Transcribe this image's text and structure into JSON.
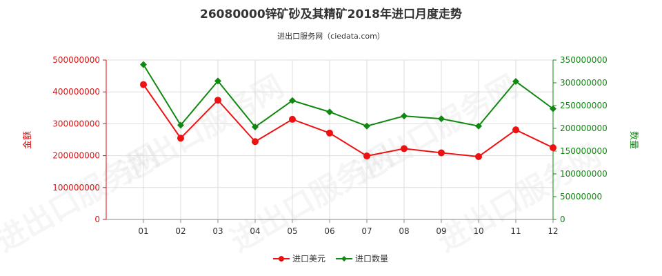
{
  "chart_data": {
    "type": "line",
    "title": "26080000锌矿砂及其精矿2018年进口月度走势",
    "subtitle": "进出口服务网（ciedata.com）",
    "categories": [
      "01",
      "02",
      "03",
      "04",
      "05",
      "06",
      "07",
      "08",
      "09",
      "10",
      "11",
      "12"
    ],
    "y_left": {
      "label": "金额",
      "ylim": [
        0,
        500000000
      ],
      "ticks": [
        "0",
        "100000000",
        "200000000",
        "300000000",
        "400000000",
        "500000000"
      ]
    },
    "y_right": {
      "label": "数量",
      "ylim": [
        0,
        350000000
      ],
      "ticks": [
        "0",
        "50000000",
        "100000000",
        "150000000",
        "200000000",
        "250000000",
        "300000000",
        "350000000"
      ]
    },
    "series": [
      {
        "name": "进口美元",
        "axis": "left",
        "color": "#ee1111",
        "values": [
          423000000,
          255000000,
          374000000,
          244000000,
          314000000,
          271000000,
          199000000,
          222000000,
          209000000,
          197000000,
          281000000,
          225000000
        ]
      },
      {
        "name": "进口数量",
        "axis": "right",
        "color": "#118811",
        "values": [
          340000000,
          207000000,
          304000000,
          203000000,
          261000000,
          236000000,
          205000000,
          227000000,
          221000000,
          205000000,
          303000000,
          243000000
        ]
      }
    ],
    "grid": true,
    "legend": "bottom-center",
    "colors": {
      "left_axis": "#dd1111",
      "right_axis": "#118811",
      "grid": "#dddddd",
      "axis": "#888888"
    },
    "watermark": "进出口服务网"
  }
}
